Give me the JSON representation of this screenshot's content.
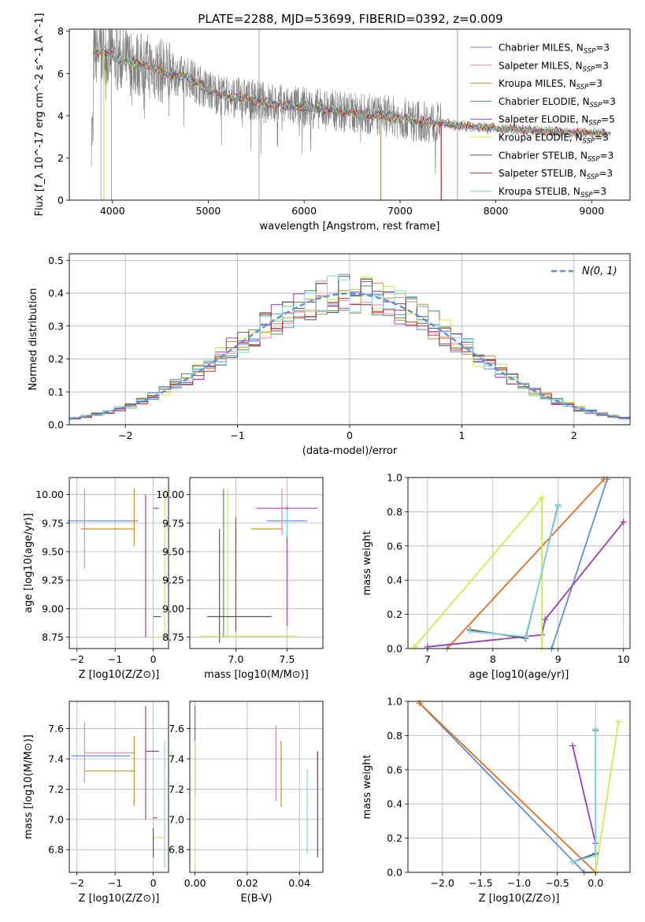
{
  "figure_title": "PLATE=2288, MJD=53699, FIBERID=0392, z=0.009",
  "colors": {
    "Chabrier MILES": "#5f8fd6",
    "Salpeter MILES": "#ee82a8",
    "Kroupa MILES": "#c8902a",
    "Chabrier ELODIE": "#4f8f5a",
    "Salpeter ELODIE": "#9c3cb8",
    "Kroupa ELODIE": "#c8ee4a",
    "Chabrier STELIB": "#555555",
    "Salpeter STELIB": "#c0302a",
    "Kroupa STELIB": "#7fd8e8",
    "orange": "#e07020",
    "normal_curve": "#5f8fd6",
    "grey_spectrum": "#808080"
  },
  "chart_data": [
    {
      "id": "spectrum",
      "type": "line",
      "xlabel": "wavelength [Angstrom, rest frame]",
      "ylabel": "Flux [f_λ 10^-17 erg cm^-2 s^-1 A^-1]",
      "xlim": [
        3550,
        9400
      ],
      "ylim": [
        0,
        8.1
      ],
      "xticks": [
        4000,
        5000,
        6000,
        7000,
        8000,
        9000
      ],
      "yticks": [
        0,
        2,
        4,
        6,
        8
      ],
      "grid": false,
      "legend_position": "top-right",
      "series": [
        {
          "name": "Chabrier MILES",
          "label": "Chabrier MILES, N",
          "sub": "SSP",
          "suffix": "=3"
        },
        {
          "name": "Salpeter MILES",
          "label": "Salpeter MILES, N",
          "sub": "SSP",
          "suffix": "=3"
        },
        {
          "name": "Kroupa MILES",
          "label": "Kroupa MILES, N",
          "sub": "SSP",
          "suffix": "=3"
        },
        {
          "name": "Chabrier ELODIE",
          "label": "Chabrier ELODIE, N",
          "sub": "SSP",
          "suffix": "=3"
        },
        {
          "name": "Salpeter ELODIE",
          "label": "Salpeter ELODIE, N",
          "sub": "SSP",
          "suffix": "=5"
        },
        {
          "name": "Kroupa ELODIE",
          "label": "Kroupa ELODIE, N",
          "sub": "SSP",
          "suffix": "=3"
        },
        {
          "name": "Chabrier STELIB",
          "label": "Chabrier STELIB, N",
          "sub": "SSP",
          "suffix": "=3"
        },
        {
          "name": "Salpeter STELIB",
          "label": "Salpeter STELIB, N",
          "sub": "SSP",
          "suffix": "=3"
        },
        {
          "name": "Kroupa STELIB",
          "label": "Kroupa STELIB, N",
          "sub": "SSP",
          "suffix": "=3"
        }
      ],
      "continuum": {
        "x": [
          3800,
          3900,
          4000,
          4200,
          4400,
          4600,
          4800,
          5000,
          5200,
          5400,
          5600,
          5800,
          6000,
          6200,
          6400,
          6600,
          6800,
          7000,
          7200,
          7400,
          7600,
          7800,
          8000,
          8200,
          8400,
          8600,
          8800,
          9000,
          9200
        ],
        "y": [
          6.9,
          7.1,
          6.8,
          6.5,
          6.3,
          6.0,
          5.8,
          5.2,
          4.9,
          4.8,
          4.6,
          4.5,
          4.4,
          4.3,
          4.2,
          4.1,
          4.0,
          3.9,
          3.75,
          3.65,
          3.55,
          3.45,
          3.4,
          3.35,
          3.3,
          3.25,
          3.2,
          3.2,
          3.15
        ]
      },
      "drops": [
        {
          "series": "Kroupa ELODIE",
          "x": 3910,
          "to": 0
        },
        {
          "series": "Kroupa MILES",
          "x": 6800,
          "to": 0
        },
        {
          "series": "Salpeter STELIB",
          "x": 7430,
          "to": 0
        }
      ]
    },
    {
      "id": "residuals",
      "type": "histogram",
      "xlabel": "(data-model)/error",
      "ylabel": "Normed distribution",
      "xlim": [
        -2.5,
        2.5
      ],
      "ylim": [
        0,
        0.52
      ],
      "xticks": [
        -2,
        -1,
        0,
        1,
        2
      ],
      "yticks": [
        0.0,
        0.1,
        0.2,
        0.3,
        0.4,
        0.5
      ],
      "grid": true,
      "legend_position": "top-right",
      "legend": [
        {
          "name": "N(0, 1)",
          "style": "dashed"
        }
      ],
      "bin_width": 0.1,
      "bin_start": -2.5
    },
    {
      "id": "age_vs_Z",
      "type": "errorbar",
      "xlabel": "Z [log10(Z/Z⊙)]",
      "ylabel": "age  [log10(age/yr)]",
      "xlim": [
        -2.2,
        0.4
      ],
      "ylim": [
        8.65,
        10.15
      ],
      "xticks": [
        -2,
        -1,
        0
      ],
      "yticks": [
        8.75,
        9.0,
        9.25,
        9.5,
        9.75,
        10.0
      ],
      "grid": true,
      "points": [
        {
          "series": "Chabrier MILES",
          "x": -0.4,
          "xerr": [
            1.85,
            0
          ],
          "y": 9.77,
          "yerr": [
            0,
            0
          ]
        },
        {
          "series": "Kroupa MILES",
          "x": -0.5,
          "xerr": [
            1.4,
            0
          ],
          "y": 9.7,
          "yerr": [
            0.15,
            0.35
          ]
        },
        {
          "series": "Salpeter MILES",
          "x": -1.8,
          "xerr": [
            0,
            0
          ],
          "y": 9.7,
          "yerr": [
            0.35,
            0.35
          ]
        },
        {
          "series": "Salpeter ELODIE",
          "x": -0.2,
          "xerr": [
            0,
            0
          ],
          "y": 9.4,
          "yerr": [
            0.65,
            0.6
          ]
        },
        {
          "series": "Salpeter ELODIE",
          "x": 0.15,
          "xerr": [
            0.15,
            0
          ],
          "y": 9.88,
          "yerr": [
            0,
            0
          ]
        },
        {
          "series": "Kroupa ELODIE",
          "x": 0.3,
          "xerr": [
            0,
            0
          ],
          "y": 9.4,
          "yerr": [
            0.65,
            0.65
          ]
        },
        {
          "series": "Kroupa ELODIE",
          "x": 0.2,
          "xerr": [
            0.2,
            0
          ],
          "y": 8.75,
          "yerr": [
            0,
            0
          ]
        },
        {
          "series": "Chabrier STELIB",
          "x": 0.2,
          "xerr": [
            0.2,
            0
          ],
          "y": 8.93,
          "yerr": [
            0,
            0
          ]
        }
      ]
    },
    {
      "id": "age_vs_mass",
      "type": "errorbar",
      "xlabel": "mass [log10(M/M⊙)]",
      "ylabel": "",
      "xlim": [
        6.55,
        7.85
      ],
      "ylim": [
        8.65,
        10.15
      ],
      "xticks": [
        7.0,
        7.5
      ],
      "yticks": [
        8.75,
        9.0,
        9.25,
        9.5,
        9.75,
        10.0
      ],
      "grid": true,
      "points": [
        {
          "series": "Chabrier STELIB",
          "x": 6.84,
          "xerr": [
            0,
            0
          ],
          "y": 9.2,
          "yerr": [
            0.5,
            0.5
          ]
        },
        {
          "series": "Chabrier ELODIE",
          "x": 6.88,
          "xerr": [
            0,
            0
          ],
          "y": 9.4,
          "yerr": [
            0.65,
            0.65
          ]
        },
        {
          "series": "Kroupa ELODIE",
          "x": 6.92,
          "xerr": [
            0,
            0
          ],
          "y": 9.4,
          "yerr": [
            0.65,
            0.65
          ]
        },
        {
          "series": "Kroupa ELODIE",
          "x": 7.0,
          "xerr": [
            0.35,
            0.6
          ],
          "y": 8.76,
          "yerr": [
            0,
            0
          ]
        },
        {
          "series": "Chabrier STELIB",
          "x": 7.0,
          "xerr": [
            0.28,
            0.35
          ],
          "y": 8.93,
          "yerr": [
            0,
            0
          ]
        },
        {
          "series": "Salpeter STELIB",
          "x": 7.0,
          "xerr": [
            0,
            0
          ],
          "y": 9.3,
          "yerr": [
            0.5,
            0.5
          ]
        },
        {
          "series": "Salpeter ELODIE",
          "x": 7.5,
          "xerr": [
            0.3,
            0.3
          ],
          "y": 9.88,
          "yerr": [
            0,
            0
          ]
        },
        {
          "series": "Salpeter ELODIE",
          "x": 7.5,
          "xerr": [
            0,
            0
          ],
          "y": 9.45,
          "yerr": [
            0.6,
            0.45
          ]
        },
        {
          "series": "Chabrier MILES",
          "x": 7.5,
          "xerr": [
            0.2,
            0.2
          ],
          "y": 9.77,
          "yerr": [
            0,
            0
          ]
        },
        {
          "series": "Kroupa MILES",
          "x": 7.4,
          "xerr": [
            0.25,
            0.05
          ],
          "y": 9.7,
          "yerr": [
            0,
            0
          ]
        },
        {
          "series": "Salpeter MILES",
          "x": 7.45,
          "xerr": [
            0,
            0
          ],
          "y": 9.85,
          "yerr": [
            0.2,
            0.2
          ]
        },
        {
          "series": "Kroupa STELIB",
          "x": 7.5,
          "xerr": [
            0,
            0
          ],
          "y": 9.75,
          "yerr": [
            0.12,
            0.12
          ]
        }
      ]
    },
    {
      "id": "weight_vs_age",
      "type": "line",
      "xlabel": "age  [log10(age/yr)]",
      "ylabel": "mass weight",
      "xlim": [
        6.7,
        10.1
      ],
      "ylim": [
        0,
        1.0
      ],
      "xticks": [
        7,
        8,
        9,
        10
      ],
      "yticks": [
        0.0,
        0.2,
        0.4,
        0.6,
        0.8,
        1.0
      ],
      "grid": true,
      "series": [
        {
          "series": "Chabrier MILES",
          "x": [
            8.9,
            9.75
          ],
          "y": [
            0.0,
            0.99
          ]
        },
        {
          "series": "Kroupa MILES",
          "x": [
            7.3,
            9.7
          ],
          "y": [
            0.0,
            0.99
          ]
        },
        {
          "series": "Salpeter ELODIE",
          "x": [
            7.0,
            8.75,
            8.8,
            10.0
          ],
          "y": [
            0.01,
            0.08,
            0.17,
            0.74
          ]
        },
        {
          "series": "Kroupa ELODIE",
          "x": [
            6.8,
            8.75,
            8.75,
            8.75
          ],
          "y": [
            0.01,
            0.88,
            0.88,
            0.0
          ]
        },
        {
          "series": "Chabrier STELIB",
          "x": [
            7.65,
            8.5,
            9.0,
            9.0
          ],
          "y": [
            0.11,
            0.06,
            0.84,
            0.83
          ]
        },
        {
          "series": "Kroupa STELIB",
          "x": [
            7.65,
            8.5,
            9.0,
            9.0
          ],
          "y": [
            0.1,
            0.07,
            0.83,
            0.84
          ]
        }
      ]
    },
    {
      "id": "mass_vs_Z",
      "type": "errorbar",
      "xlabel": "Z [log10(Z/Z⊙)]",
      "ylabel": "mass [log10(M/M⊙)]",
      "xlim": [
        -2.2,
        0.4
      ],
      "ylim": [
        6.65,
        7.78
      ],
      "xticks": [
        -2,
        -1,
        0
      ],
      "yticks": [
        6.8,
        7.0,
        7.2,
        7.4,
        7.6
      ],
      "grid": true,
      "points": [
        {
          "series": "Chabrier MILES",
          "x": -0.6,
          "xerr": [
            1.55,
            0
          ],
          "y": 7.42,
          "yerr": [
            0,
            0
          ]
        },
        {
          "series": "Salpeter MILES",
          "x": -1.8,
          "xerr": [
            0,
            0
          ],
          "y": 7.44,
          "yerr": [
            0.2,
            0.2
          ]
        },
        {
          "series": "Salpeter MILES",
          "x": -0.5,
          "xerr": [
            1.3,
            0
          ],
          "y": 7.44,
          "yerr": [
            0,
            0
          ]
        },
        {
          "series": "Kroupa MILES",
          "x": -0.5,
          "xerr": [
            1.3,
            0
          ],
          "y": 7.32,
          "yerr": [
            0.23,
            0.23
          ]
        },
        {
          "series": "Salpeter ELODIE",
          "x": -0.2,
          "xerr": [
            0,
            0
          ],
          "y": 7.37,
          "yerr": [
            0.37,
            0.38
          ]
        },
        {
          "series": "Salpeter ELODIE",
          "x": 0.05,
          "xerr": [
            0.25,
            0.1
          ],
          "y": 7.45,
          "yerr": [
            0,
            0
          ]
        },
        {
          "series": "Kroupa ELODIE",
          "x": 0.25,
          "xerr": [
            0.25,
            0
          ],
          "y": 6.88,
          "yerr": [
            0,
            0
          ]
        },
        {
          "series": "Kroupa STELIB",
          "x": 0.3,
          "xerr": [
            0,
            0
          ],
          "y": 7.1,
          "yerr": [
            0.42,
            0.42
          ]
        },
        {
          "series": "Salpeter STELIB",
          "x": 0.1,
          "xerr": [
            0.1,
            0
          ],
          "y": 7.01,
          "yerr": [
            0,
            0
          ]
        },
        {
          "series": "Chabrier STELIB",
          "x": 0.0,
          "xerr": [
            0,
            0
          ],
          "y": 6.84,
          "yerr": [
            0.09,
            0.1
          ]
        }
      ]
    },
    {
      "id": "mass_vs_EBV",
      "type": "errorbar",
      "xlabel": "E(B-V)",
      "ylabel": "",
      "xlim": [
        -0.002,
        0.049
      ],
      "ylim": [
        6.65,
        7.78
      ],
      "xticks": [
        0.0,
        0.02,
        0.04
      ],
      "yticks": [
        6.8,
        7.0,
        7.2,
        7.4,
        7.6
      ],
      "grid": true,
      "points": [
        {
          "series": "Salpeter ELODIE",
          "x": 0.0,
          "xerr": [
            0,
            0
          ],
          "y": 7.45,
          "yerr": [
            0.3,
            0.3
          ]
        },
        {
          "series": "Kroupa ELODIE",
          "x": 0.0,
          "xerr": [
            0,
            0
          ],
          "y": 7.1,
          "yerr": [
            0.42,
            0.42
          ]
        },
        {
          "series": "Salpeter MILES",
          "x": 0.031,
          "xerr": [
            0,
            0
          ],
          "y": 7.37,
          "yerr": [
            0.25,
            0.25
          ]
        },
        {
          "series": "Kroupa MILES",
          "x": 0.033,
          "xerr": [
            0,
            0
          ],
          "y": 7.3,
          "yerr": [
            0.22,
            0.22
          ]
        },
        {
          "series": "Kroupa STELIB",
          "x": 0.043,
          "xerr": [
            0,
            0
          ],
          "y": 7.05,
          "yerr": [
            0.28,
            0.28
          ]
        },
        {
          "series": "Chabrier STELIB",
          "x": 0.047,
          "xerr": [
            0,
            0
          ],
          "y": 7.1,
          "yerr": [
            0.35,
            0.35
          ]
        },
        {
          "series": "Salpeter STELIB",
          "x": 0.047,
          "xerr": [
            0,
            0
          ],
          "y": 7.35,
          "yerr": [
            0.1,
            0.1
          ]
        }
      ]
    },
    {
      "id": "weight_vs_Z",
      "type": "line",
      "xlabel": "Z [log10(Z/Z⊙)]",
      "ylabel": "mass weight",
      "xlim": [
        -2.45,
        0.45
      ],
      "ylim": [
        0,
        1.0
      ],
      "xticks": [
        -2.0,
        -1.5,
        -1.0,
        -0.5,
        0.0
      ],
      "yticks": [
        0.0,
        0.2,
        0.4,
        0.6,
        0.8,
        1.0
      ],
      "grid": true,
      "series": [
        {
          "series": "Chabrier MILES",
          "x": [
            -2.3,
            -0.15,
            0.0
          ],
          "y": [
            0.99,
            0.0,
            0.0
          ]
        },
        {
          "series": "Kroupa MILES",
          "x": [
            -2.3,
            0.0
          ],
          "y": [
            0.99,
            0.0
          ]
        },
        {
          "series": "Salpeter ELODIE",
          "x": [
            -0.3,
            0.0
          ],
          "y": [
            0.74,
            0.17
          ]
        },
        {
          "series": "Kroupa ELODIE",
          "x": [
            0.0,
            0.0,
            0.3
          ],
          "y": [
            0.0,
            0.0,
            0.88
          ]
        },
        {
          "series": "Chabrier STELIB",
          "x": [
            -0.3,
            0.0,
            0.0
          ],
          "y": [
            0.06,
            0.11,
            0.83
          ]
        },
        {
          "series": "Kroupa STELIB",
          "x": [
            -0.3,
            0.0,
            0.0
          ],
          "y": [
            0.06,
            0.1,
            0.84
          ]
        }
      ]
    }
  ]
}
